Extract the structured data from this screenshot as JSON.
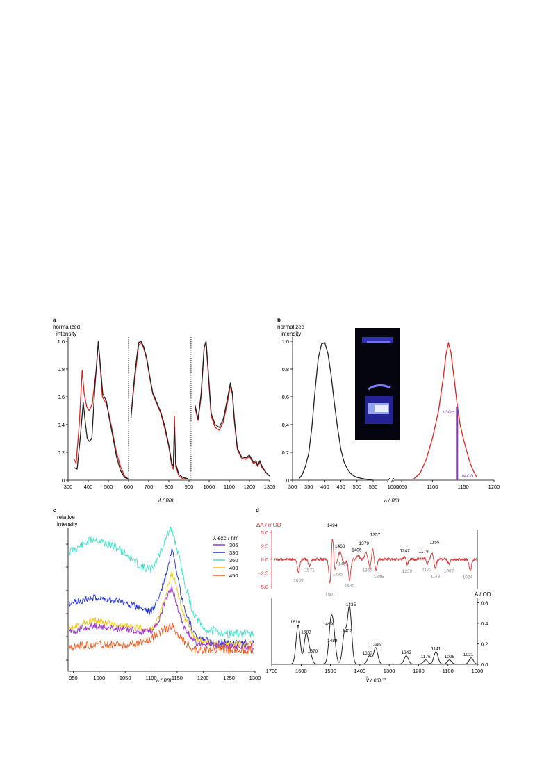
{
  "panels": {
    "a": {
      "letter": "a",
      "ylabel_line1": "normalized",
      "ylabel_line2": "intensity",
      "xlabel": "λ / nm"
    },
    "b": {
      "letter": "b",
      "ylabel_line1": "normalized",
      "ylabel_line2": "intensity",
      "xlabel": "λ / nm"
    },
    "c": {
      "letter": "c",
      "ylabel_line1": "relative",
      "ylabel_line2": "intensity",
      "xlabel": "λ / nm",
      "legend_title": "λ exc / nm"
    },
    "d": {
      "letter": "d",
      "top_ylabel": "ΔA / mOD",
      "bottom_ylabel": "A / OD",
      "xlabel": "ν̃ / cm⁻¹"
    }
  },
  "colors": {
    "black": "#222222",
    "red": "#e02020",
    "purple": "#7b3fa0",
    "exc306": "#9b30d0",
    "exc330": "#1f2fd8",
    "exc360": "#3fe0c8",
    "exc400": "#f5c200",
    "exc450": "#f05a1e",
    "dred": "#d63a3a",
    "dgray": "#8a8a8a"
  },
  "chart_data": [
    {
      "panel": "a",
      "type": "line",
      "ylabel": "normalized intensity",
      "xlabel": "λ / nm",
      "xlim": [
        300,
        1300
      ],
      "ylim": [
        0,
        1.0
      ],
      "xticks": [
        300,
        400,
        500,
        600,
        700,
        800,
        900,
        1000,
        1100,
        1200,
        1300
      ],
      "yticks": [
        0,
        0.2,
        0.4,
        0.6,
        0.8,
        1.0
      ],
      "ytick_labels": [
        "0",
        "0.2",
        "0.4",
        "0.6",
        "0.8",
        "1.0"
      ],
      "dividers": [
        600,
        910
      ],
      "series": [
        {
          "color": "red",
          "segments": [
            [
              [
                330,
                0.15
              ],
              [
                340,
                0.12
              ],
              [
                355,
                0.4
              ],
              [
                370,
                0.79
              ],
              [
                380,
                0.62
              ],
              [
                392,
                0.53
              ],
              [
                405,
                0.5
              ],
              [
                420,
                0.55
              ],
              [
                440,
                0.8
              ],
              [
                450,
                0.99
              ],
              [
                458,
                0.85
              ],
              [
                470,
                0.6
              ],
              [
                490,
                0.55
              ],
              [
                505,
                0.46
              ],
              [
                520,
                0.35
              ],
              [
                540,
                0.2
              ],
              [
                560,
                0.1
              ],
              [
                580,
                0.03
              ],
              [
                598,
                0.01
              ]
            ],
            [
              [
                612,
                0.45
              ],
              [
                625,
                0.65
              ],
              [
                638,
                0.82
              ],
              [
                650,
                0.97
              ],
              [
                662,
                0.99
              ],
              [
                675,
                0.95
              ],
              [
                690,
                0.87
              ],
              [
                705,
                0.74
              ],
              [
                720,
                0.62
              ],
              [
                740,
                0.55
              ],
              [
                760,
                0.48
              ],
              [
                780,
                0.37
              ],
              [
                800,
                0.24
              ],
              [
                815,
                0.1
              ],
              [
                822,
                0.08
              ],
              [
                828,
                0.46
              ],
              [
                834,
                0.1
              ],
              [
                850,
                0.03
              ],
              [
                870,
                0.01
              ],
              [
                895,
                0.01
              ]
            ],
            [
              [
                930,
                0.52
              ],
              [
                945,
                0.43
              ],
              [
                960,
                0.6
              ],
              [
                975,
                0.95
              ],
              [
                985,
                0.99
              ],
              [
                995,
                0.78
              ],
              [
                1010,
                0.46
              ],
              [
                1030,
                0.38
              ],
              [
                1050,
                0.36
              ],
              [
                1070,
                0.42
              ],
              [
                1090,
                0.55
              ],
              [
                1105,
                0.68
              ],
              [
                1115,
                0.62
              ],
              [
                1125,
                0.42
              ],
              [
                1140,
                0.22
              ],
              [
                1160,
                0.16
              ],
              [
                1180,
                0.15
              ],
              [
                1200,
                0.17
              ],
              [
                1220,
                0.12
              ],
              [
                1232,
                0.13
              ],
              [
                1240,
                0.1
              ],
              [
                1252,
                0.13
              ],
              [
                1262,
                0.09
              ],
              [
                1285,
                0.05
              ],
              [
                1300,
                0.03
              ]
            ]
          ]
        },
        {
          "color": "black",
          "segments": [
            [
              [
                330,
                0.09
              ],
              [
                345,
                0.08
              ],
              [
                360,
                0.3
              ],
              [
                375,
                0.56
              ],
              [
                385,
                0.42
              ],
              [
                395,
                0.3
              ],
              [
                405,
                0.28
              ],
              [
                418,
                0.3
              ],
              [
                432,
                0.65
              ],
              [
                450,
                1.0
              ],
              [
                460,
                0.83
              ],
              [
                472,
                0.62
              ],
              [
                490,
                0.57
              ],
              [
                505,
                0.44
              ],
              [
                520,
                0.33
              ],
              [
                540,
                0.17
              ],
              [
                560,
                0.07
              ],
              [
                580,
                0.02
              ],
              [
                598,
                0.01
              ]
            ],
            [
              [
                612,
                0.45
              ],
              [
                625,
                0.68
              ],
              [
                638,
                0.85
              ],
              [
                650,
                0.99
              ],
              [
                662,
                1.0
              ],
              [
                675,
                0.96
              ],
              [
                690,
                0.88
              ],
              [
                705,
                0.75
              ],
              [
                720,
                0.63
              ],
              [
                740,
                0.56
              ],
              [
                760,
                0.49
              ],
              [
                780,
                0.39
              ],
              [
                800,
                0.25
              ],
              [
                815,
                0.12
              ],
              [
                822,
                0.1
              ],
              [
                828,
                0.38
              ],
              [
                834,
                0.12
              ],
              [
                850,
                0.04
              ],
              [
                870,
                0.02
              ],
              [
                895,
                0.01
              ]
            ],
            [
              [
                930,
                0.54
              ],
              [
                945,
                0.44
              ],
              [
                960,
                0.62
              ],
              [
                975,
                0.96
              ],
              [
                985,
                1.0
              ],
              [
                995,
                0.8
              ],
              [
                1010,
                0.48
              ],
              [
                1030,
                0.4
              ],
              [
                1050,
                0.38
              ],
              [
                1070,
                0.44
              ],
              [
                1090,
                0.58
              ],
              [
                1105,
                0.7
              ],
              [
                1115,
                0.63
              ],
              [
                1125,
                0.44
              ],
              [
                1140,
                0.23
              ],
              [
                1160,
                0.17
              ],
              [
                1180,
                0.16
              ],
              [
                1200,
                0.18
              ],
              [
                1220,
                0.13
              ],
              [
                1232,
                0.14
              ],
              [
                1240,
                0.11
              ],
              [
                1252,
                0.14
              ],
              [
                1262,
                0.1
              ],
              [
                1285,
                0.05
              ],
              [
                1300,
                0.03
              ]
            ]
          ]
        }
      ]
    },
    {
      "panel": "b",
      "type": "line",
      "ylabel": "normalized intensity",
      "xlabel": "λ / nm",
      "ylim": [
        0,
        1.0
      ],
      "yticks": [
        0,
        0.2,
        0.4,
        0.6,
        0.8,
        1.0
      ],
      "ytick_labels": [
        "0",
        "0.2",
        "0.4",
        "0.6",
        "0.8",
        "1.0"
      ],
      "x_segments": [
        {
          "xlim": [
            300,
            1000
          ],
          "xticks": [
            300,
            350,
            400,
            450,
            500,
            550,
            1000
          ]
        },
        {
          "xlim": [
            1050,
            1200
          ],
          "xticks": [
            1050,
            1100,
            1150,
            1200
          ]
        }
      ],
      "series": [
        {
          "color": "black",
          "points": [
            [
              320,
              0.01
            ],
            [
              330,
              0.04
            ],
            [
              340,
              0.1
            ],
            [
              350,
              0.19
            ],
            [
              360,
              0.38
            ],
            [
              370,
              0.65
            ],
            [
              380,
              0.88
            ],
            [
              390,
              0.98
            ],
            [
              400,
              0.99
            ],
            [
              410,
              0.91
            ],
            [
              420,
              0.75
            ],
            [
              430,
              0.55
            ],
            [
              440,
              0.37
            ],
            [
              450,
              0.22
            ],
            [
              460,
              0.13
            ],
            [
              470,
              0.08
            ],
            [
              480,
              0.05
            ],
            [
              490,
              0.03
            ],
            [
              500,
              0.02
            ],
            [
              520,
              0.01
            ],
            [
              550,
              0.0
            ]
          ]
        },
        {
          "color": "red",
          "points": [
            [
              1070,
              0.01
            ],
            [
              1080,
              0.05
            ],
            [
              1090,
              0.15
            ],
            [
              1100,
              0.3
            ],
            [
              1110,
              0.5
            ],
            [
              1118,
              0.75
            ],
            [
              1122,
              0.9
            ],
            [
              1126,
              0.99
            ],
            [
              1130,
              0.92
            ],
            [
              1135,
              0.74
            ],
            [
              1140,
              0.55
            ],
            [
              1145,
              0.4
            ],
            [
              1150,
              0.3
            ],
            [
              1155,
              0.22
            ],
            [
              1160,
              0.14
            ],
            [
              1165,
              0.08
            ],
            [
              1172,
              0.02
            ]
          ]
        }
      ],
      "stick": {
        "x": 1140,
        "y": 0.53,
        "color": "purple"
      },
      "annotations": [
        "ν3OH",
        "ν4CO"
      ]
    },
    {
      "panel": "c",
      "type": "line",
      "ylabel": "relative intensity",
      "xlabel": "λ / nm",
      "xlim": [
        940,
        1300
      ],
      "xticks": [
        950,
        1000,
        1050,
        1100,
        1150,
        1200,
        1250,
        1300
      ],
      "legend_title": "λ exc / nm",
      "legend_position": "top-right",
      "series": [
        {
          "name": "306",
          "color": "exc306"
        },
        {
          "name": "330",
          "color": "exc330"
        },
        {
          "name": "360",
          "color": "exc360"
        },
        {
          "name": "400",
          "color": "exc400"
        },
        {
          "name": "450",
          "color": "exc450"
        }
      ]
    },
    {
      "panel": "d",
      "type": "line",
      "xlabel": "ν̃ / cm⁻¹",
      "xlim": [
        1700,
        1000
      ],
      "xticks": [
        1700,
        1600,
        1500,
        1400,
        1300,
        1200,
        1100,
        1000
      ],
      "top": {
        "ylabel": "ΔA / mOD",
        "ylim": [
          -5.5,
          5.5
        ],
        "yticks": [
          5.0,
          2.5,
          0.0,
          -2.5,
          -5.0
        ],
        "ytick_labels": [
          "5.0",
          "2.5",
          "0.0",
          "−2.5",
          "−5.0"
        ],
        "peaks_pos": [
          1494,
          1468,
          1406,
          1379,
          1357,
          1247,
          1178,
          1155
        ],
        "peaks_neg": [
          1609,
          1571,
          1501,
          1485,
          1452,
          1435,
          1365,
          1345,
          1239,
          1172,
          1143,
          1097,
          1024
        ]
      },
      "bottom": {
        "ylabel": "A / OD",
        "ylim": [
          0,
          0.65
        ],
        "yticks": [
          0.0,
          0.2,
          0.4,
          0.6
        ],
        "ytick_labels": [
          "0.0",
          "0.2",
          "0.4",
          "0.6"
        ],
        "peaks": [
          [
            1610,
            0.38
          ],
          [
            1583,
            0.28
          ],
          [
            1570,
            0.1
          ],
          [
            1499,
            0.36
          ],
          [
            1489,
            0.25
          ],
          [
            1452,
            0.3
          ],
          [
            1435,
            0.55
          ],
          [
            1367,
            0.08
          ],
          [
            1346,
            0.16
          ],
          [
            1242,
            0.08
          ],
          [
            1176,
            0.04
          ],
          [
            1141,
            0.12
          ],
          [
            1095,
            0.04
          ],
          [
            1021,
            0.06
          ]
        ]
      }
    }
  ]
}
